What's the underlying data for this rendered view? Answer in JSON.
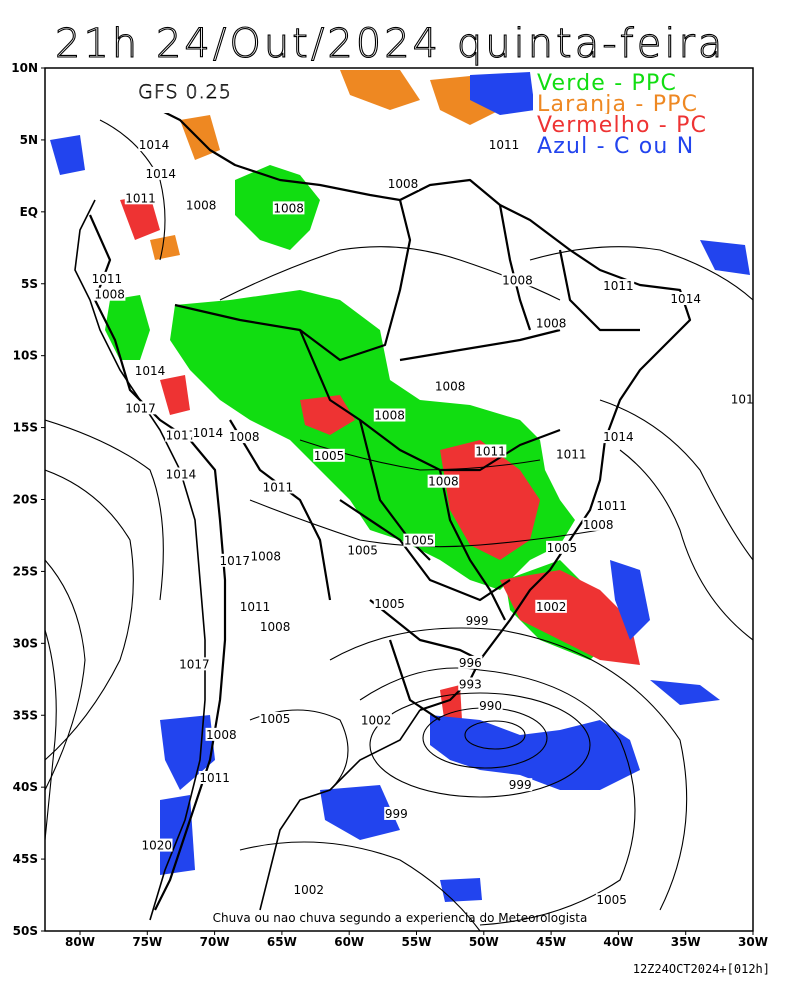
{
  "title": "21h 24/Out/2024 quinta-feira",
  "model": "GFS 0.25",
  "legend": [
    {
      "label": "Verde - PPC",
      "color": "#11dd11"
    },
    {
      "label": "Laranja - PPC",
      "color": "#ee8822"
    },
    {
      "label": "Vermelho - PC",
      "color": "#ee3333"
    },
    {
      "label": "Azul - C ou N",
      "color": "#2244ee"
    }
  ],
  "caption": "Chuva ou nao chuva segundo a experiencia do Meteorologista",
  "footer": "12Z24OCT2024+[012h]",
  "lat_labels": [
    "10N",
    "5N",
    "EQ",
    "5S",
    "10S",
    "15S",
    "20S",
    "25S",
    "30S",
    "35S",
    "40S",
    "45S",
    "50S"
  ],
  "lon_labels": [
    "80W",
    "75W",
    "70W",
    "65W",
    "60W",
    "55W",
    "50W",
    "45W",
    "40W",
    "35W",
    "30W"
  ],
  "isobar_labels": [
    {
      "text": "1014",
      "lon": -74.5,
      "lat": 4.5
    },
    {
      "text": "1014",
      "lon": -74,
      "lat": 2.5
    },
    {
      "text": "1011",
      "lon": -75.5,
      "lat": 0.8
    },
    {
      "text": "1008",
      "lon": -71,
      "lat": 0.3
    },
    {
      "text": "1008",
      "lon": -64.5,
      "lat": 0.1
    },
    {
      "text": "1008",
      "lon": -56,
      "lat": 1.8
    },
    {
      "text": "1011",
      "lon": -48.5,
      "lat": 4.5
    },
    {
      "text": "1008",
      "lon": -47.5,
      "lat": -4.9
    },
    {
      "text": "1011",
      "lon": -40,
      "lat": -5.3
    },
    {
      "text": "1014",
      "lon": -35,
      "lat": -6.2
    },
    {
      "text": "1008",
      "lon": -45,
      "lat": -7.9
    },
    {
      "text": "1011",
      "lon": -78,
      "lat": -4.8
    },
    {
      "text": "1008",
      "lon": -77.8,
      "lat": -5.9
    },
    {
      "text": "1014",
      "lon": -74.8,
      "lat": -11.2
    },
    {
      "text": "1017",
      "lon": -75.5,
      "lat": -13.8
    },
    {
      "text": "1017",
      "lon": -72.5,
      "lat": -15.7
    },
    {
      "text": "1014",
      "lon": -70.5,
      "lat": -15.5
    },
    {
      "text": "1008",
      "lon": -67.8,
      "lat": -15.8
    },
    {
      "text": "1008",
      "lon": -57,
      "lat": -14.3
    },
    {
      "text": "1008",
      "lon": -52.5,
      "lat": -12.3
    },
    {
      "text": "1005",
      "lon": -61.5,
      "lat": -17.1
    },
    {
      "text": "1011",
      "lon": -49.5,
      "lat": -16.8
    },
    {
      "text": "1011",
      "lon": -43.5,
      "lat": -17
    },
    {
      "text": "1014",
      "lon": -40,
      "lat": -15.8
    },
    {
      "text": "1014",
      "lon": -72.5,
      "lat": -18.4
    },
    {
      "text": "1011",
      "lon": -65.3,
      "lat": -19.3
    },
    {
      "text": "1008",
      "lon": -53,
      "lat": -18.9
    },
    {
      "text": "1011",
      "lon": -40.5,
      "lat": -20.6
    },
    {
      "text": "1008",
      "lon": -41.5,
      "lat": -21.9
    },
    {
      "text": "1005",
      "lon": -54.8,
      "lat": -23
    },
    {
      "text": "1005",
      "lon": -59,
      "lat": -23.7
    },
    {
      "text": "1005",
      "lon": -44.2,
      "lat": -23.5
    },
    {
      "text": "1017",
      "lon": -68.5,
      "lat": -24.4
    },
    {
      "text": "1008",
      "lon": -66.2,
      "lat": -24.1
    },
    {
      "text": "1005",
      "lon": -57,
      "lat": -27.4
    },
    {
      "text": "1002",
      "lon": -45,
      "lat": -27.6
    },
    {
      "text": "1011",
      "lon": -67,
      "lat": -27.6
    },
    {
      "text": "1008",
      "lon": -65.5,
      "lat": -29
    },
    {
      "text": "999",
      "lon": -50.5,
      "lat": -28.6
    },
    {
      "text": "1017",
      "lon": -71.5,
      "lat": -31.6
    },
    {
      "text": "996",
      "lon": -51,
      "lat": -31.5
    },
    {
      "text": "993",
      "lon": -51,
      "lat": -33
    },
    {
      "text": "990",
      "lon": -49.5,
      "lat": -34.5
    },
    {
      "text": "1005",
      "lon": -65.5,
      "lat": -35.4
    },
    {
      "text": "1002",
      "lon": -58,
      "lat": -35.5
    },
    {
      "text": "1008",
      "lon": -69.5,
      "lat": -36.5
    },
    {
      "text": "1011",
      "lon": -70,
      "lat": -39.5
    },
    {
      "text": "999",
      "lon": -47.3,
      "lat": -40
    },
    {
      "text": "999",
      "lon": -56.5,
      "lat": -42
    },
    {
      "text": "1020",
      "lon": -74.3,
      "lat": -44.2
    },
    {
      "text": "1002",
      "lon": -63,
      "lat": -47.3
    },
    {
      "text": "1005",
      "lon": -40.5,
      "lat": -48
    },
    {
      "text": "101",
      "lon": -30.8,
      "lat": -13.2
    }
  ]
}
